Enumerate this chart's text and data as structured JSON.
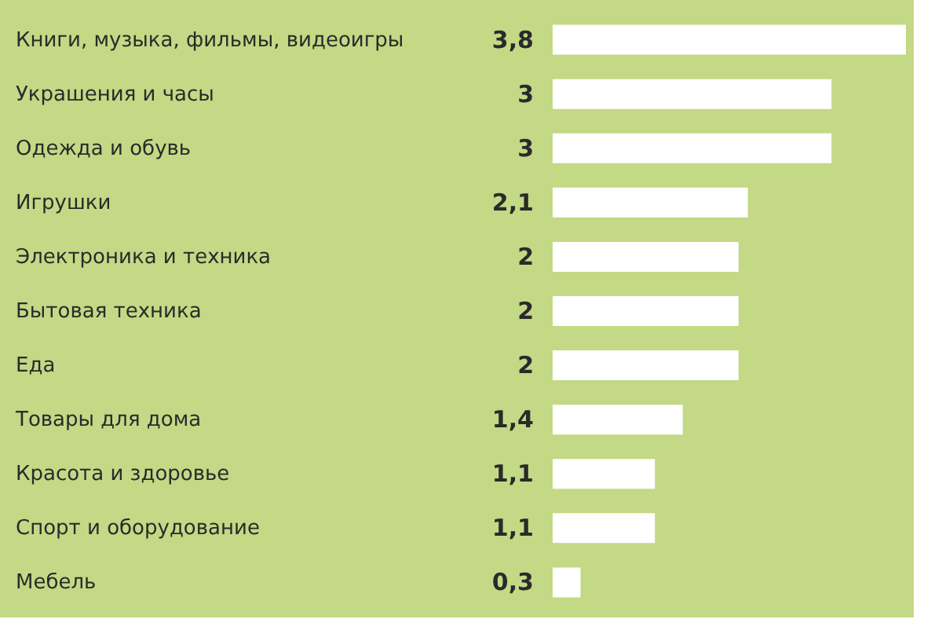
{
  "chart_data": {
    "type": "bar",
    "orientation": "horizontal",
    "data_labels": true,
    "categories": [
      "Книги, музыка, фильмы, видеоигры",
      "Украшения и часы",
      "Одежда и обувь",
      "Игрушки",
      "Электроника и техника",
      "Бытовая техника",
      "Еда",
      "Товары для дома",
      "Красота и здоровье",
      "Спорт и оборудование",
      "Мебель"
    ],
    "values": [
      3.8,
      3,
      3,
      2.1,
      2,
      2,
      2,
      1.4,
      1.1,
      1.1,
      0.3
    ],
    "value_labels": [
      "3,8",
      "3",
      "3",
      "2,1",
      "2",
      "2",
      "2",
      "1,4",
      "1,1",
      "1,1",
      "0,3"
    ],
    "color": "#ffffff"
  }
}
